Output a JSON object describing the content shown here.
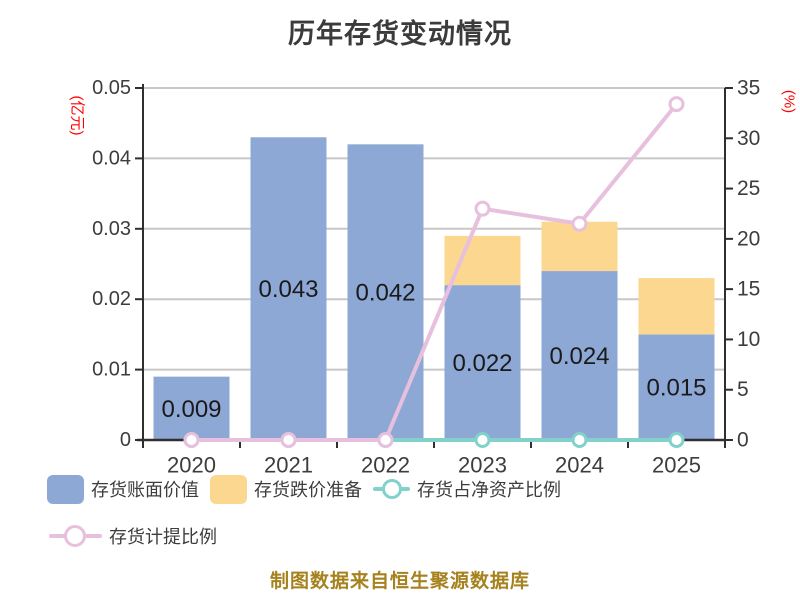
{
  "title": "历年存货变动情况",
  "credit": "制图数据来自恒生聚源数据库",
  "colors": {
    "bar_blue": "#8EA8D6",
    "bar_yellow": "#FCD78F",
    "line_cyan": "#82D1CB",
    "line_pink": "#E7C0DE",
    "axis_unit_red": "#FF0000",
    "grid_gray": "#C8C8C8",
    "axis_dark": "#2F2F2F",
    "text_dark": "#3D3D3D",
    "credit_gold": "#A6821E"
  },
  "legend": [
    {
      "label": "存货账面价值",
      "glyph": "swatch",
      "color": "#8EA8D6"
    },
    {
      "label": "存货跌价准备",
      "glyph": "swatch",
      "color": "#FCD78F"
    },
    {
      "label": "存货占净资产比例",
      "glyph": "line-marker",
      "color": "#82D1CB"
    },
    {
      "label": "存货计提比例",
      "glyph": "line-marker",
      "color": "#E7C0DE"
    }
  ],
  "chart_data": {
    "type": "bar",
    "title": "历年存货变动情况",
    "categories": [
      "2020",
      "2021",
      "2022",
      "2023",
      "2024",
      "2025"
    ],
    "series": [
      {
        "name": "存货账面价值",
        "type": "bar",
        "stack": true,
        "axis": "left",
        "color": "#8EA8D6",
        "values": [
          0.009,
          0.043,
          0.042,
          0.022,
          0.024,
          0.015
        ],
        "labels": [
          "0.009",
          "0.043",
          "0.042",
          "0.022",
          "0.024",
          "0.015"
        ]
      },
      {
        "name": "存货跌价准备",
        "type": "bar",
        "stack": true,
        "axis": "left",
        "color": "#FCD78F",
        "values": [
          0,
          0,
          0,
          0.007,
          0.007,
          0.008
        ]
      },
      {
        "name": "存货占净资产比例",
        "type": "line",
        "axis": "right",
        "color": "#82D1CB",
        "values": [
          0,
          0,
          0,
          0,
          0,
          0
        ]
      },
      {
        "name": "存货计提比例",
        "type": "line",
        "axis": "right",
        "color": "#E7C0DE",
        "values": [
          0,
          0,
          0,
          23.0,
          21.5,
          33.4
        ]
      }
    ],
    "left_axis": {
      "label": "(亿元)",
      "min": 0,
      "max": 0.05,
      "ticks": [
        "0",
        "0.01",
        "0.02",
        "0.03",
        "0.04",
        "0.05"
      ]
    },
    "right_axis": {
      "label": "(%)",
      "min": 0,
      "max": 35,
      "ticks": [
        "0",
        "5",
        "10",
        "15",
        "20",
        "25",
        "30",
        "35"
      ]
    },
    "grid": true,
    "legend_position": "bottom"
  }
}
